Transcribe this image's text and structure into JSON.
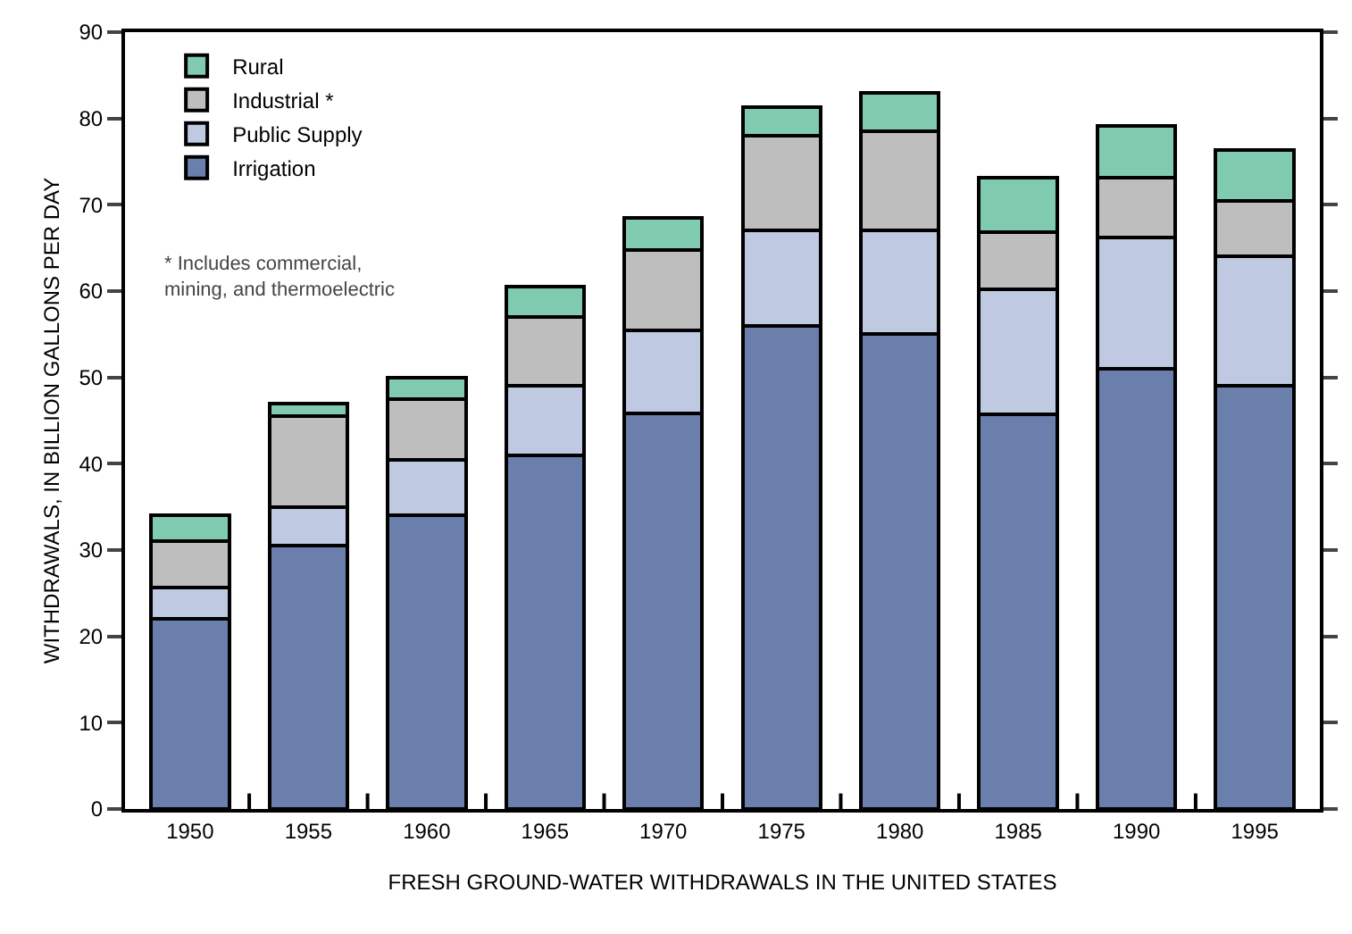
{
  "chart_data": {
    "type": "bar",
    "stacked": true,
    "xlabel": "FRESH GROUND-WATER WITHDRAWALS IN THE UNITED STATES",
    "ylabel": "WITHDRAWALS, IN BILLION GALLONS PER DAY",
    "categories": [
      "1950",
      "1955",
      "1960",
      "1965",
      "1970",
      "1975",
      "1980",
      "1985",
      "1990",
      "1995"
    ],
    "series": [
      {
        "name": "Irrigation",
        "color": "#6a7fac",
        "values": [
          22,
          30.5,
          34,
          41,
          45.8,
          56,
          55,
          45.7,
          51,
          49
        ]
      },
      {
        "name": "Public Supply",
        "color": "#bfcae2",
        "values": [
          3.7,
          4.5,
          6.5,
          8,
          9.7,
          11,
          12,
          14.5,
          15.2,
          15
        ]
      },
      {
        "name": "Industrial *",
        "color": "#bebebe",
        "values": [
          5.3,
          10.5,
          7,
          8,
          9.3,
          11,
          11.5,
          6.6,
          6.9,
          6.4
        ]
      },
      {
        "name": "Rural",
        "color": "#80cbb0",
        "values": [
          3,
          1.5,
          2.5,
          3.5,
          3.7,
          3.3,
          4.5,
          6.3,
          6,
          5.9
        ]
      }
    ],
    "ylim": [
      0,
      90
    ],
    "yticks": [
      0,
      10,
      20,
      30,
      40,
      50,
      60,
      70,
      80,
      90
    ],
    "grid": false,
    "legend": "top left",
    "annotations": [
      "* Includes commercial,\nmining, and thermoelectric"
    ]
  }
}
